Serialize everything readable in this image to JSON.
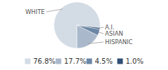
{
  "chart_data": {
    "type": "pie",
    "categories": [
      "WHITE",
      "HISPANIC",
      "ASIAN",
      "A.I."
    ],
    "values": [
      76.8,
      17.7,
      4.5,
      1.0
    ],
    "value_labels": [
      "76.8%",
      "17.7%",
      "4.5%",
      "1.0%"
    ],
    "colors": [
      "#d3dbe5",
      "#a9b8ca",
      "#6b86a6",
      "#2f4f75"
    ],
    "legend": "bottom"
  }
}
